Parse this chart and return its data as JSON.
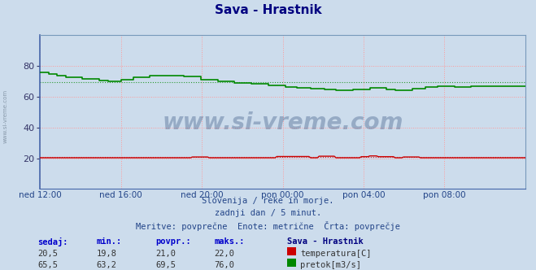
{
  "title": "Sava - Hrastnik",
  "title_color": "#000080",
  "bg_color": "#ccdcec",
  "plot_bg_color": "#ccdcec",
  "ylim": [
    0,
    100
  ],
  "yticks": [
    20,
    40,
    60,
    80
  ],
  "xtick_labels": [
    "ned 12:00",
    "ned 16:00",
    "ned 20:00",
    "pon 00:00",
    "pon 04:00",
    "pon 08:00"
  ],
  "xtick_positions": [
    0.0,
    0.1667,
    0.3333,
    0.5,
    0.6667,
    0.8333
  ],
  "grid_color": "#ff9999",
  "temp_color": "#cc0000",
  "flow_color": "#008800",
  "avg_temp": 21.0,
  "avg_flow": 69.5,
  "watermark": "www.si-vreme.com",
  "sub_text1": "Slovenija / reke in morje.",
  "sub_text2": "zadnji dan / 5 minut.",
  "sub_text3": "Meritve: povprečne  Enote: metrične  Črta: povprečje",
  "legend_title": "Sava - Hrastnik",
  "label_temp": "temperatura[C]",
  "label_flow": "pretok[m3/s]",
  "stats_headers": [
    "sedaj:",
    "min.:",
    "povpr.:",
    "maks.:"
  ],
  "temp_stats": [
    20.5,
    19.8,
    21.0,
    22.0
  ],
  "flow_stats": [
    65.5,
    63.2,
    69.5,
    76.0
  ]
}
